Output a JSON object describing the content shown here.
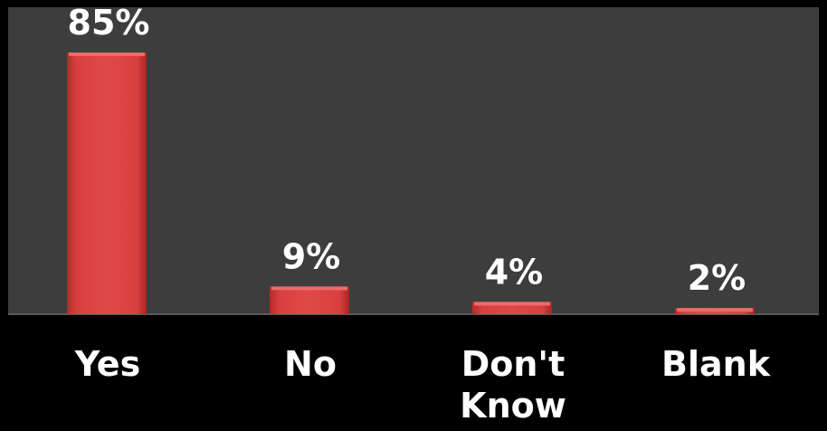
{
  "colors": {
    "page_background": "#000000",
    "plot_background": "#3d3d3d",
    "bar_fill": "#d93f3f",
    "bar_highlight": "#ef6a6a",
    "bar_shadow": "#9e2222",
    "axis_line": "#5a5a5a",
    "text": "#ffffff"
  },
  "chart_data": {
    "type": "bar",
    "categories": [
      "Yes",
      "No",
      "Don't Know",
      "Blank"
    ],
    "category_lines": [
      [
        "Yes"
      ],
      [
        "No"
      ],
      [
        "Don't",
        "Know"
      ],
      [
        "Blank"
      ]
    ],
    "values": [
      85,
      9,
      4,
      2
    ],
    "data_labels": [
      "85%",
      "9%",
      "4%",
      "2%"
    ],
    "title": "",
    "xlabel": "",
    "ylabel": "",
    "ylim": [
      0,
      85
    ],
    "grid": false,
    "legend": "none"
  }
}
